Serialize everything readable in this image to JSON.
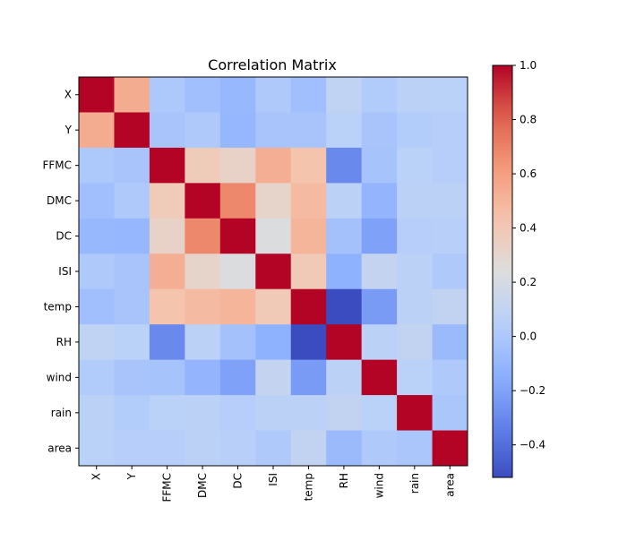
{
  "chart_data": {
    "type": "heatmap",
    "title": "Correlation Matrix",
    "xlabel": "",
    "ylabel": "",
    "labels": [
      "X",
      "Y",
      "FFMC",
      "DMC",
      "DC",
      "ISI",
      "temp",
      "RH",
      "wind",
      "rain",
      "area"
    ],
    "values": [
      [
        1.0,
        0.54,
        0.0,
        -0.05,
        -0.09,
        0.01,
        -0.05,
        0.09,
        0.02,
        0.07,
        0.06
      ],
      [
        0.54,
        1.0,
        -0.02,
        0.01,
        -0.1,
        -0.02,
        -0.02,
        0.06,
        -0.02,
        0.03,
        0.04
      ],
      [
        0.0,
        -0.02,
        1.0,
        0.38,
        0.33,
        0.53,
        0.43,
        -0.3,
        -0.03,
        0.06,
        0.04
      ],
      [
        -0.05,
        0.01,
        0.38,
        1.0,
        0.68,
        0.31,
        0.47,
        0.07,
        -0.11,
        0.07,
        0.07
      ],
      [
        -0.09,
        -0.1,
        0.33,
        0.68,
        1.0,
        0.23,
        0.5,
        -0.04,
        -0.2,
        0.04,
        0.05
      ],
      [
        0.01,
        -0.02,
        0.53,
        0.31,
        0.23,
        1.0,
        0.39,
        -0.13,
        0.11,
        0.07,
        0.01
      ],
      [
        -0.05,
        -0.02,
        0.43,
        0.47,
        0.5,
        0.39,
        1.0,
        -0.53,
        -0.23,
        0.07,
        0.1
      ],
      [
        0.09,
        0.06,
        -0.3,
        0.07,
        -0.04,
        -0.13,
        -0.53,
        1.0,
        0.07,
        0.1,
        -0.08
      ],
      [
        0.02,
        -0.02,
        -0.03,
        -0.11,
        -0.2,
        0.11,
        -0.23,
        0.07,
        1.0,
        0.06,
        0.01
      ],
      [
        0.07,
        0.03,
        0.06,
        0.07,
        0.04,
        0.07,
        0.07,
        0.1,
        0.06,
        1.0,
        -0.01
      ],
      [
        0.06,
        0.04,
        0.04,
        0.07,
        0.05,
        0.01,
        0.1,
        -0.08,
        0.01,
        -0.01,
        1.0
      ]
    ],
    "colormap": "coolwarm",
    "vmin": -0.52,
    "vmax": 1.0,
    "colorbar_ticks": [
      "1.0",
      "0.8",
      "0.6",
      "0.4",
      "0.2",
      "0.0",
      "−0.2",
      "−0.4"
    ],
    "colorbar_tick_values": [
      1.0,
      0.8,
      0.6,
      0.4,
      0.2,
      0.0,
      -0.2,
      -0.4
    ],
    "grid": false,
    "legend": "colorbar-right"
  }
}
